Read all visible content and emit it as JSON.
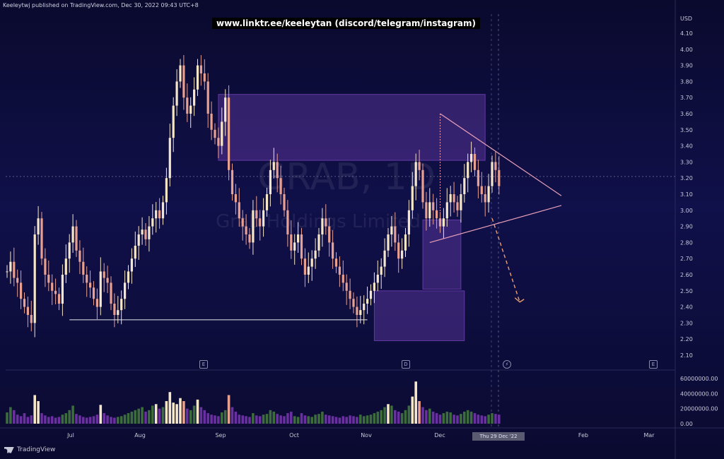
{
  "header": {
    "publisher": "Keeleytwj published on TradingView.com, Dec 30, 2022 09:43 UTC+8",
    "link_banner": "www.linktr.ee/keeleytan (discord/telegram/instagram)"
  },
  "watermark": {
    "ticker": "GRAB, 1D",
    "name": "Grab Holdings Limited"
  },
  "footer": {
    "logo_text": "TradingView",
    "crosshair_date": "Thu 29 Dec '22"
  },
  "colors": {
    "up_candle": "#f5e6c8",
    "down_candle": "#e8a090",
    "volume_up": "#3c6b3c",
    "volume_down": "#6a2fa0",
    "zone_fill": "#8a4fd0",
    "trendline": "#e8a0b8"
  },
  "icons": [
    "calendar-icon-sep",
    "calendar-icon-nov",
    "lightning-icon-dec",
    "calendar-icon-feb"
  ],
  "chart_data": {
    "type": "candlestick",
    "currency_label": "USD",
    "y_axis_ticks": [
      "4.10",
      "4.00",
      "3.90",
      "3.80",
      "3.70",
      "3.60",
      "3.50",
      "3.40",
      "3.30",
      "3.20",
      "3.10",
      "3.00",
      "2.90",
      "2.80",
      "2.70",
      "2.60",
      "2.50",
      "2.40",
      "2.30",
      "2.20",
      "2.10"
    ],
    "volume_axis_ticks": [
      "60000000.00",
      "40000000.00",
      "20000000.00",
      "0.00"
    ],
    "x_axis_ticks": [
      "Jul",
      "Aug",
      "Sep",
      "Oct",
      "Nov",
      "Dec",
      "Feb",
      "Mar"
    ],
    "ylim": [
      2.05,
      4.15
    ],
    "close_prices": [
      2.62,
      2.68,
      2.58,
      2.55,
      2.45,
      2.4,
      2.35,
      2.3,
      2.85,
      2.95,
      2.7,
      2.6,
      2.55,
      2.5,
      2.48,
      2.42,
      2.6,
      2.7,
      2.8,
      2.9,
      2.75,
      2.68,
      2.6,
      2.55,
      2.52,
      2.45,
      2.4,
      2.62,
      2.58,
      2.55,
      2.42,
      2.35,
      2.38,
      2.45,
      2.55,
      2.62,
      2.7,
      2.78,
      2.85,
      2.88,
      2.82,
      2.9,
      2.95,
      3.0,
      2.95,
      3.05,
      3.2,
      3.45,
      3.65,
      3.8,
      3.9,
      3.7,
      3.6,
      3.65,
      3.75,
      3.9,
      3.85,
      3.8,
      3.6,
      3.5,
      3.45,
      3.4,
      3.55,
      3.7,
      3.25,
      3.1,
      3.05,
      2.95,
      2.9,
      2.85,
      2.8,
      3.0,
      2.95,
      2.9,
      3.0,
      3.1,
      3.25,
      3.3,
      3.2,
      3.1,
      3.0,
      2.85,
      2.75,
      2.8,
      2.85,
      2.7,
      2.6,
      2.65,
      2.7,
      2.75,
      2.85,
      2.95,
      2.9,
      2.8,
      2.7,
      2.65,
      2.6,
      2.55,
      2.5,
      2.45,
      2.4,
      2.35,
      2.38,
      2.42,
      2.45,
      2.5,
      2.55,
      2.6,
      2.65,
      2.75,
      2.85,
      2.9,
      2.8,
      2.7,
      2.75,
      2.85,
      3.0,
      3.15,
      3.3,
      3.25,
      3.05,
      2.95,
      3.05,
      3.0,
      2.95,
      2.9,
      2.95,
      3.05,
      3.1,
      3.05,
      3.0,
      3.1,
      3.2,
      3.3,
      3.35,
      3.25,
      3.15,
      3.1,
      3.05,
      3.15,
      3.3,
      3.25,
      3.15
    ],
    "volume": [
      15,
      22,
      18,
      12,
      10,
      14,
      9,
      11,
      38,
      30,
      14,
      11,
      9,
      10,
      8,
      9,
      12,
      14,
      18,
      24,
      13,
      11,
      9,
      8,
      9,
      10,
      12,
      25,
      14,
      11,
      9,
      8,
      9,
      10,
      12,
      14,
      16,
      18,
      20,
      22,
      16,
      18,
      24,
      26,
      20,
      22,
      30,
      42,
      28,
      26,
      34,
      30,
      20,
      18,
      24,
      32,
      22,
      18,
      14,
      12,
      11,
      10,
      15,
      18,
      38,
      22,
      16,
      12,
      11,
      10,
      9,
      14,
      11,
      10,
      12,
      13,
      18,
      16,
      13,
      11,
      10,
      14,
      16,
      10,
      9,
      14,
      11,
      10,
      9,
      12,
      13,
      16,
      12,
      11,
      10,
      9,
      8,
      10,
      9,
      11,
      10,
      9,
      12,
      10,
      11,
      12,
      14,
      16,
      18,
      22,
      26,
      24,
      18,
      16,
      14,
      18,
      24,
      36,
      56,
      30,
      22,
      18,
      20,
      16,
      14,
      12,
      14,
      16,
      15,
      12,
      11,
      13,
      16,
      18,
      16,
      14,
      12,
      11,
      10,
      12,
      14,
      13,
      12
    ],
    "zones": [
      {
        "from_bar": 61,
        "to_bar": 138,
        "top": 3.72,
        "bottom": 3.31
      },
      {
        "from_bar": 120,
        "to_bar": 131,
        "top": 2.94,
        "bottom": 2.51
      },
      {
        "from_bar": 106,
        "to_bar": 132,
        "top": 2.5,
        "bottom": 2.19
      }
    ],
    "support_line": {
      "from_bar": 18,
      "to_bar": 104,
      "price": 2.32
    },
    "upper_trendline": {
      "from_bar": 125,
      "from_price": 3.6,
      "to_bar": 160,
      "to_price": 3.09
    },
    "lower_trendline": {
      "from_bar": 122,
      "from_price": 2.8,
      "to_bar": 160,
      "to_price": 3.03
    },
    "projection": {
      "from_bar": 140,
      "from_price": 2.95,
      "to_bar": 148,
      "to_price": 2.43
    }
  }
}
